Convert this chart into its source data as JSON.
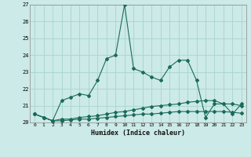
{
  "xlabel": "Humidex (Indice chaleur)",
  "x": [
    0,
    1,
    2,
    3,
    4,
    5,
    6,
    7,
    8,
    9,
    10,
    11,
    12,
    13,
    14,
    15,
    16,
    17,
    18,
    19,
    20,
    21,
    22,
    23
  ],
  "line1": [
    20.5,
    20.3,
    20.1,
    21.3,
    21.5,
    21.7,
    21.6,
    22.5,
    23.8,
    24.0,
    27.0,
    23.2,
    23.0,
    22.7,
    22.5,
    23.3,
    23.7,
    23.7,
    22.5,
    20.3,
    21.1,
    21.1,
    20.5,
    21.1
  ],
  "line2": [
    20.5,
    20.3,
    20.1,
    20.2,
    20.2,
    20.3,
    20.35,
    20.4,
    20.5,
    20.6,
    20.65,
    20.75,
    20.85,
    20.95,
    21.0,
    21.05,
    21.1,
    21.2,
    21.25,
    21.3,
    21.3,
    21.1,
    21.1,
    21.0
  ],
  "line3": [
    20.5,
    20.3,
    20.1,
    20.1,
    20.15,
    20.2,
    20.2,
    20.25,
    20.3,
    20.35,
    20.4,
    20.45,
    20.5,
    20.5,
    20.55,
    20.6,
    20.65,
    20.65,
    20.65,
    20.65,
    20.65,
    20.65,
    20.6,
    20.55
  ],
  "line_color": "#1a6b5a",
  "bg_color": "#cceae7",
  "grid_color": "#a8d4cf",
  "ylim": [
    20,
    27
  ],
  "xlim": [
    -0.5,
    23.5
  ],
  "yticks": [
    20,
    21,
    22,
    23,
    24,
    25,
    26,
    27
  ],
  "xticks": [
    0,
    1,
    2,
    3,
    4,
    5,
    6,
    7,
    8,
    9,
    10,
    11,
    12,
    13,
    14,
    15,
    16,
    17,
    18,
    19,
    20,
    21,
    22,
    23
  ]
}
